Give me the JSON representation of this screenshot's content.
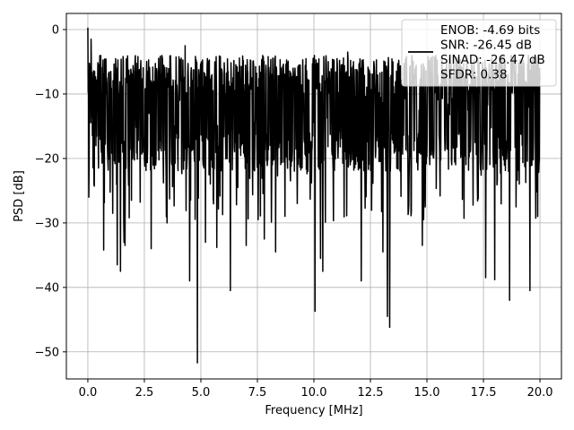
{
  "chart_data": {
    "type": "line",
    "title": "",
    "xlabel": "Frequency [MHz]",
    "ylabel": "PSD [dB]",
    "xlim": [
      -0.95,
      20.95
    ],
    "ylim": [
      -54.2,
      2.5
    ],
    "xticks": [
      0.0,
      2.5,
      5.0,
      7.5,
      10.0,
      12.5,
      15.0,
      17.5,
      20.0
    ],
    "xtick_labels": [
      "0.0",
      "2.5",
      "5.0",
      "7.5",
      "10.0",
      "12.5",
      "15.0",
      "17.5",
      "20.0"
    ],
    "yticks": [
      0,
      -10,
      -20,
      -30,
      -40,
      -50
    ],
    "ytick_labels": [
      "0",
      "−10",
      "−20",
      "−30",
      "−40",
      "−50"
    ],
    "grid": true,
    "legend_position": "top-right",
    "line_color": "#000000",
    "series": [
      {
        "name": "ENOB: -4.69 bits\nSNR: -26.45 dB\nSINAD: -26.47 dB\nSFDR: 0.38",
        "x_range": [
          0.0,
          20.0
        ],
        "band": [
          -22,
          -4
        ],
        "peaks": [
          {
            "x": 0.0,
            "y": 0.3
          },
          {
            "x": 0.15,
            "y": -1.5
          },
          {
            "x": 2.0,
            "y": -5.6
          },
          {
            "x": 4.3,
            "y": -2.5
          },
          {
            "x": 7.0,
            "y": -4.3
          },
          {
            "x": 9.5,
            "y": -4.7
          },
          {
            "x": 11.5,
            "y": -3.5
          },
          {
            "x": 13.5,
            "y": -5.0
          },
          {
            "x": 17.0,
            "y": -5.4
          },
          {
            "x": 19.5,
            "y": -6.5
          }
        ],
        "dips": [
          {
            "x": 0.05,
            "y": -26.0
          },
          {
            "x": 0.7,
            "y": -34.2
          },
          {
            "x": 1.1,
            "y": -28.5
          },
          {
            "x": 1.3,
            "y": -36.5
          },
          {
            "x": 1.45,
            "y": -37.5
          },
          {
            "x": 1.6,
            "y": -33.0
          },
          {
            "x": 1.65,
            "y": -33.5
          },
          {
            "x": 2.8,
            "y": -34.0
          },
          {
            "x": 3.5,
            "y": -30.0
          },
          {
            "x": 4.5,
            "y": -39.0
          },
          {
            "x": 4.85,
            "y": -51.7
          },
          {
            "x": 5.2,
            "y": -33.0
          },
          {
            "x": 5.7,
            "y": -33.8
          },
          {
            "x": 6.3,
            "y": -40.5
          },
          {
            "x": 7.0,
            "y": -33.5
          },
          {
            "x": 7.8,
            "y": -32.5
          },
          {
            "x": 8.3,
            "y": -34.5
          },
          {
            "x": 10.05,
            "y": -43.7
          },
          {
            "x": 10.3,
            "y": -35.5
          },
          {
            "x": 10.4,
            "y": -37.5
          },
          {
            "x": 12.1,
            "y": -39.0
          },
          {
            "x": 13.05,
            "y": -34.5
          },
          {
            "x": 13.25,
            "y": -44.5
          },
          {
            "x": 13.35,
            "y": -46.2
          },
          {
            "x": 14.8,
            "y": -33.5
          },
          {
            "x": 17.6,
            "y": -38.5
          },
          {
            "x": 18.0,
            "y": -38.8
          },
          {
            "x": 18.65,
            "y": -42.0
          },
          {
            "x": 19.55,
            "y": -40.5
          },
          {
            "x": 19.9,
            "y": -29.0
          }
        ]
      }
    ]
  }
}
